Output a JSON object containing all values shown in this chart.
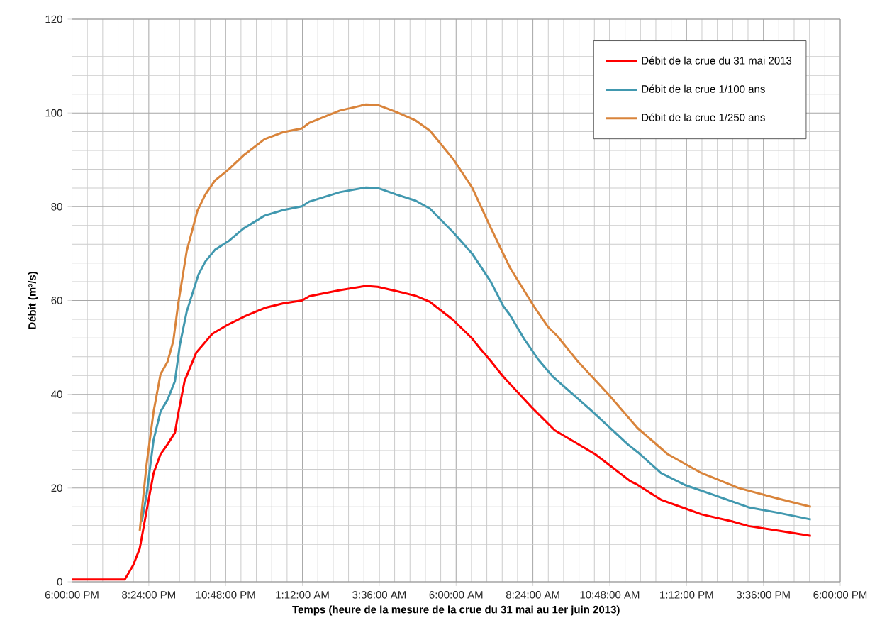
{
  "chart_data": {
    "type": "line",
    "xlabel": "Temps (heure de la mesure de la crue du 31 mai au 1er juin 2013)",
    "ylabel": "Débit (m³/s)",
    "xlim": [
      "2013-05-31T18:00",
      "2013-06-01T18:00"
    ],
    "ylim": [
      0,
      120
    ],
    "xticks": [
      {
        "value": "2013-05-31T18:00",
        "label": "6:00:00 PM"
      },
      {
        "value": "2013-05-31T20:24",
        "label": "8:24:00 PM"
      },
      {
        "value": "2013-05-31T22:48",
        "label": "10:48:00 PM"
      },
      {
        "value": "2013-06-01T01:12",
        "label": "1:12:00 AM"
      },
      {
        "value": "2013-06-01T03:36",
        "label": "3:36:00 AM"
      },
      {
        "value": "2013-06-01T06:00",
        "label": "6:00:00 AM"
      },
      {
        "value": "2013-06-01T08:24",
        "label": "8:24:00 AM"
      },
      {
        "value": "2013-06-01T10:48",
        "label": "10:48:00 AM"
      },
      {
        "value": "2013-06-01T13:12",
        "label": "1:12:00 PM"
      },
      {
        "value": "2013-06-01T15:36",
        "label": "3:36:00 PM"
      },
      {
        "value": "2013-06-01T18:00",
        "label": "6:00:00 PM"
      }
    ],
    "yticks": [
      0,
      20,
      40,
      60,
      80,
      100,
      120
    ],
    "grid": true,
    "legend": "top right",
    "marker": "none",
    "line_style": "solid",
    "series": [
      {
        "name": "Débit de la crue du 31 mai 2013",
        "color": "#ff0000",
        "x": [
          "2013-05-31T18:00",
          "2013-05-31T19:39",
          "2013-05-31T19:55",
          "2013-05-31T20:07",
          "2013-05-31T20:20",
          "2013-05-31T20:33",
          "2013-05-31T20:46",
          "2013-05-31T20:59",
          "2013-05-31T21:13",
          "2013-05-31T21:19",
          "2013-05-31T21:31",
          "2013-05-31T21:53",
          "2013-05-31T22:23",
          "2013-05-31T22:50",
          "2013-05-31T23:25",
          "2013-06-01T00:01",
          "2013-06-01T00:36",
          "2013-06-01T01:11",
          "2013-06-01T01:25",
          "2013-06-01T02:22",
          "2013-06-01T03:11",
          "2013-06-01T03:33",
          "2013-06-01T04:08",
          "2013-06-01T04:44",
          "2013-06-01T05:11",
          "2013-06-01T05:55",
          "2013-06-01T06:30",
          "2013-06-01T06:44",
          "2013-06-01T07:05",
          "2013-06-01T07:28",
          "2013-06-01T08:21",
          "2013-06-01T09:05",
          "2013-06-01T10:21",
          "2013-06-01T11:26",
          "2013-06-01T11:40",
          "2013-06-01T12:24",
          "2013-06-01T13:08",
          "2013-06-01T13:40",
          "2013-06-01T14:37",
          "2013-06-01T15:08",
          "2013-06-01T16:05",
          "2013-06-01T17:05"
        ],
        "values": [
          0.5,
          0.5,
          3.6,
          7.1,
          15.2,
          23.2,
          27.2,
          29.3,
          31.8,
          35.8,
          42.8,
          48.9,
          52.9,
          54.7,
          56.7,
          58.4,
          59.4,
          60.0,
          60.9,
          62.2,
          63.1,
          62.9,
          62.0,
          61.0,
          59.7,
          55.8,
          51.9,
          49.9,
          47.1,
          43.8,
          37.3,
          32.3,
          27.2,
          21.5,
          20.7,
          17.5,
          15.7,
          14.4,
          12.9,
          11.9,
          10.9,
          9.8
        ]
      },
      {
        "name": "Débit de la crue 1/100 ans",
        "color": "#4198af",
        "x": [
          "2013-05-31T20:11",
          "2013-05-31T20:20",
          "2013-05-31T20:33",
          "2013-05-31T20:46",
          "2013-05-31T20:59",
          "2013-05-31T21:13",
          "2013-05-31T21:22",
          "2013-05-31T21:35",
          "2013-05-31T21:57",
          "2013-05-31T22:10",
          "2013-05-31T22:28",
          "2013-05-31T22:55",
          "2013-05-31T23:21",
          "2013-06-01T00:01",
          "2013-06-01T00:36",
          "2013-06-01T01:11",
          "2013-06-01T01:25",
          "2013-06-01T02:22",
          "2013-06-01T03:11",
          "2013-06-01T03:33",
          "2013-06-01T04:08",
          "2013-06-01T04:44",
          "2013-06-01T05:11",
          "2013-06-01T05:55",
          "2013-06-01T06:30",
          "2013-06-01T07:05",
          "2013-06-01T07:28",
          "2013-06-01T07:41",
          "2013-06-01T08:07",
          "2013-06-01T08:34",
          "2013-06-01T09:01",
          "2013-06-01T10:11",
          "2013-06-01T11:22",
          "2013-06-01T11:40",
          "2013-06-01T12:24",
          "2013-06-01T13:08",
          "2013-06-01T14:06",
          "2013-06-01T15:08",
          "2013-06-01T16:05",
          "2013-06-01T17:05"
        ],
        "values": [
          12.9,
          18.7,
          30.3,
          36.3,
          38.8,
          42.8,
          50.4,
          57.6,
          65.5,
          68.3,
          70.8,
          72.8,
          75.3,
          78.1,
          79.3,
          80.1,
          81.1,
          83.1,
          84.1,
          84.0,
          82.6,
          81.3,
          79.6,
          74.5,
          70.0,
          64.0,
          58.9,
          56.9,
          51.9,
          47.4,
          43.8,
          36.8,
          29.3,
          27.7,
          23.2,
          20.7,
          18.4,
          15.9,
          14.7,
          13.3
        ]
      },
      {
        "name": "Débit de la crue 1/250 ans",
        "color": "#d9843b",
        "x": [
          "2013-05-31T20:07",
          "2013-05-31T20:20",
          "2013-05-31T20:33",
          "2013-05-31T20:46",
          "2013-05-31T20:59",
          "2013-05-31T21:10",
          "2013-05-31T21:19",
          "2013-05-31T21:35",
          "2013-05-31T21:55",
          "2013-05-31T22:10",
          "2013-05-31T22:28",
          "2013-05-31T22:55",
          "2013-05-31T23:21",
          "2013-06-01T00:01",
          "2013-06-01T00:36",
          "2013-06-01T01:11",
          "2013-06-01T01:25",
          "2013-06-01T02:22",
          "2013-06-01T03:11",
          "2013-06-01T03:33",
          "2013-06-01T04:08",
          "2013-06-01T04:44",
          "2013-06-01T05:11",
          "2013-06-01T05:55",
          "2013-06-01T06:30",
          "2013-06-01T07:05",
          "2013-06-01T07:41",
          "2013-06-01T08:25",
          "2013-06-01T08:52",
          "2013-06-01T09:10",
          "2013-06-01T09:49",
          "2013-06-01T10:47",
          "2013-06-01T11:40",
          "2013-06-01T12:37",
          "2013-06-01T13:40",
          "2013-06-01T14:50",
          "2013-06-01T16:05",
          "2013-06-01T17:05"
        ],
        "values": [
          10.9,
          25.2,
          36.3,
          44.3,
          46.9,
          51.4,
          59.2,
          70.5,
          79.1,
          82.6,
          85.6,
          88.1,
          90.9,
          94.4,
          95.9,
          96.7,
          97.9,
          100.5,
          101.8,
          101.7,
          100.2,
          98.4,
          96.2,
          90.1,
          84.1,
          75.5,
          67.0,
          58.9,
          54.4,
          52.4,
          46.9,
          39.8,
          32.8,
          27.2,
          23.2,
          20.0,
          17.7,
          16.0
        ]
      }
    ]
  }
}
